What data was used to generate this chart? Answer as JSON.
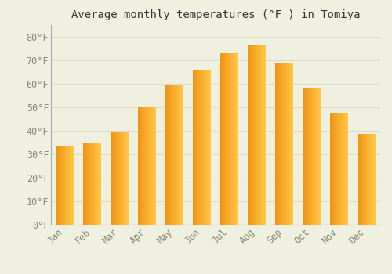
{
  "title": "Average monthly temperatures (°F ) in Tomiya",
  "months": [
    "Jan",
    "Feb",
    "Mar",
    "Apr",
    "May",
    "Jun",
    "Jul",
    "Aug",
    "Sep",
    "Oct",
    "Nov",
    "Dec"
  ],
  "values": [
    33.5,
    34.5,
    39.5,
    50.0,
    59.5,
    66.0,
    73.0,
    76.5,
    69.0,
    58.0,
    47.5,
    38.5
  ],
  "bar_color_top": "#FDB72A",
  "bar_color_bottom": "#F09000",
  "bar_color_mid": "#FCC040",
  "background_color": "#F0F0E0",
  "grid_color": "#DDDDCC",
  "text_color": "#888877",
  "spine_color": "#AAAAAA",
  "ylim": [
    0,
    85
  ],
  "yticks": [
    0,
    10,
    20,
    30,
    40,
    50,
    60,
    70,
    80
  ],
  "title_fontsize": 10,
  "tick_fontsize": 8.5,
  "bar_width": 0.65
}
